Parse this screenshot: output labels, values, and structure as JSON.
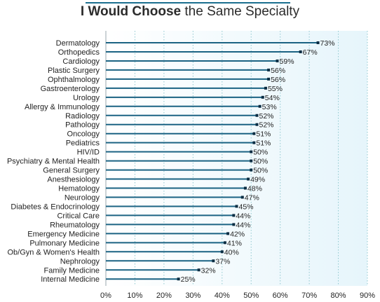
{
  "chart_data": {
    "type": "bar",
    "orientation": "horizontal",
    "title_bold": "I Would Choose",
    "title_rest": " the Same Specialty",
    "categories": [
      "Dermatology",
      "Orthopedics",
      "Cardiology",
      "Plastic Surgery",
      "Ophthalmology",
      "Gastroenterology",
      "Urology",
      "Allergy & Immunology",
      "Radiology",
      "Pathology",
      "Oncology",
      "Pediatrics",
      "HIV/ID",
      "Psychiatry & Mental Health",
      "General Surgery",
      "Anesthesiology",
      "Hematology",
      "Neurology",
      "Diabetes & Endocrinology",
      "Critical Care",
      "Rheumatology",
      "Emergency Medicine",
      "Pulmonary Medicine",
      "Ob/Gyn & Women's Health",
      "Nephrology",
      "Family Medicine",
      "Internal Medicine"
    ],
    "values": [
      73,
      67,
      59,
      56,
      56,
      55,
      54,
      53,
      52,
      52,
      51,
      51,
      50,
      50,
      50,
      49,
      48,
      47,
      45,
      44,
      44,
      42,
      41,
      40,
      37,
      32,
      25
    ],
    "value_labels": [
      "73%",
      "67%",
      "59%",
      "56%",
      "56%",
      "55%",
      "54%",
      "53%",
      "52%",
      "52%",
      "51%",
      "51%",
      "50%",
      "50%",
      "50%",
      "49%",
      "48%",
      "47%",
      "45%",
      "44%",
      "44%",
      "42%",
      "41%",
      "40%",
      "37%",
      "32%",
      "25%"
    ],
    "xticks": [
      0,
      10,
      20,
      30,
      40,
      50,
      60,
      70,
      80,
      90
    ],
    "xtick_labels": [
      "0%",
      "10%",
      "20%",
      "30%",
      "40%",
      "50%",
      "60%",
      "70%",
      "80%",
      "90%"
    ],
    "xlim": [
      0,
      90
    ],
    "grid": "vertical dotted",
    "colors": {
      "bar_line": "#1b6383",
      "bar_marker": "#0b2d43",
      "background_start": "#ffffff",
      "background_end": "#e6f5fb",
      "gridline": "#8fc7cf",
      "title_rule": "#1b6f8f"
    }
  }
}
